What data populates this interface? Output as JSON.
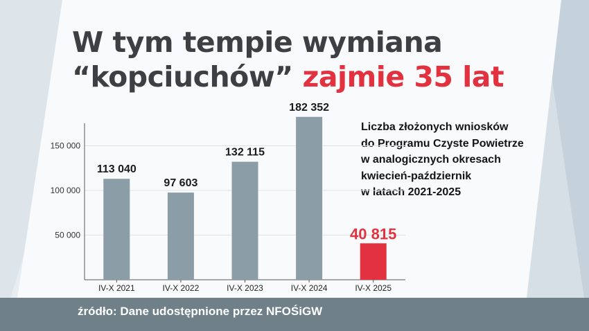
{
  "title": {
    "line1": "W tym tempie wymiana",
    "line2_part1": "“kopciuchów”",
    "line2_part2": "zajmie 35 lat"
  },
  "description": "Liczba złożonych wniosków\ndo Programu Czyste Powietrze\nw analogicznych okresach\nkwiecień-październik\nw latach 2021-2025",
  "footer": {
    "source": "źródło: Dane udostępnione przez NFOŚiGW"
  },
  "colors": {
    "bar": "#8b9ea8",
    "highlight": "#e2323f",
    "title": "#3d3f42",
    "footer_bg": "#6f8089"
  },
  "chart_data": {
    "type": "bar",
    "categories": [
      "IV-X 2021",
      "IV-X 2022",
      "IV-X 2023",
      "IV-X 2024",
      "IV-X 2025"
    ],
    "values": [
      113040,
      97603,
      132115,
      182352,
      40815
    ],
    "value_labels": [
      "113 040",
      "97 603",
      "132 115",
      "182 352",
      "40 815"
    ],
    "highlight_index": 4,
    "ylim": [
      0,
      200000
    ],
    "yticks": [
      50000,
      100000,
      150000
    ],
    "ytick_labels": [
      "50 000",
      "100 000",
      "150 000"
    ],
    "grid": true
  }
}
